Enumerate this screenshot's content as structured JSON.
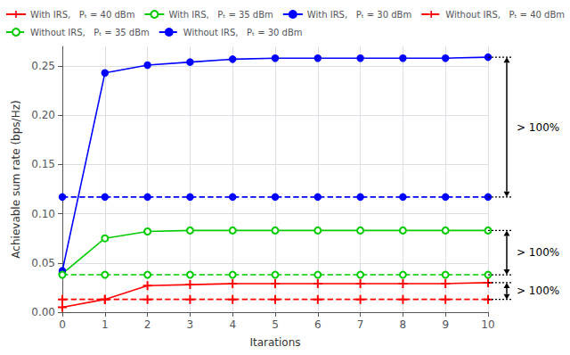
{
  "chart_data": {
    "type": "line",
    "xlabel": "Itarations",
    "ylabel": "Achievable sum rate (bps/Hz)",
    "x": [
      0,
      1,
      2,
      3,
      4,
      5,
      6,
      7,
      8,
      9,
      10
    ],
    "xlim": [
      0,
      10
    ],
    "xticks": [
      0,
      1,
      2,
      3,
      4,
      5,
      6,
      7,
      8,
      9,
      10
    ],
    "ylim": [
      0,
      0.27
    ],
    "yticks": [
      {
        "value": 0,
        "label": "0.00"
      },
      {
        "value": 0.05,
        "label": "0.05"
      },
      {
        "value": 0.1,
        "label": "0.10"
      },
      {
        "value": 0.15,
        "label": "0.15"
      },
      {
        "value": 0.2,
        "label": "0.20"
      },
      {
        "value": 0.25,
        "label": "0.25"
      }
    ],
    "grid": true,
    "legend": "top",
    "series": [
      {
        "name": "With IRS,   Pₜ = 40 dBm",
        "color": "#FF0000",
        "marker": "plus",
        "line_style": "solid",
        "values": [
          0.005,
          0.013,
          0.027,
          0.028,
          0.029,
          0.029,
          0.029,
          0.029,
          0.029,
          0.029,
          0.03
        ]
      },
      {
        "name": "With IRS,   Pₜ = 35 dBm",
        "color": "#00CC00",
        "marker": "circle_open",
        "line_style": "solid",
        "values": [
          0.039,
          0.075,
          0.082,
          0.083,
          0.083,
          0.083,
          0.083,
          0.083,
          0.083,
          0.083,
          0.083
        ]
      },
      {
        "name": "With IRS,   Pₜ = 30 dBm",
        "color": "#0000FF",
        "marker": "circle",
        "line_style": "solid",
        "values": [
          0.042,
          0.243,
          0.251,
          0.254,
          0.257,
          0.258,
          0.258,
          0.258,
          0.258,
          0.258,
          0.259
        ]
      },
      {
        "name": "Without IRS,   Pₜ = 40 dBm",
        "color": "#FF0000",
        "marker": "plus",
        "line_style": "dashed",
        "values": [
          0.013,
          0.013,
          0.013,
          0.013,
          0.013,
          0.013,
          0.013,
          0.013,
          0.013,
          0.013,
          0.013
        ]
      },
      {
        "name": "Without IRS,   Pₜ = 35 dBm",
        "color": "#00CC00",
        "marker": "circle_open",
        "line_style": "dashed",
        "values": [
          0.038,
          0.038,
          0.038,
          0.038,
          0.038,
          0.038,
          0.038,
          0.038,
          0.038,
          0.038,
          0.038
        ]
      },
      {
        "name": "Without IRS,   Pₜ = 30 dBm",
        "color": "#0000FF",
        "marker": "circle",
        "line_style": "dashed",
        "values": [
          0.117,
          0.117,
          0.117,
          0.117,
          0.117,
          0.117,
          0.117,
          0.117,
          0.117,
          0.117,
          0.117
        ]
      }
    ],
    "annotations": [
      {
        "text": "> 100%",
        "y_from": 0.259,
        "y_to": 0.117
      },
      {
        "text": "> 100%",
        "y_from": 0.083,
        "y_to": 0.038
      },
      {
        "text": "> 100%",
        "y_from": 0.03,
        "y_to": 0.013
      }
    ]
  }
}
